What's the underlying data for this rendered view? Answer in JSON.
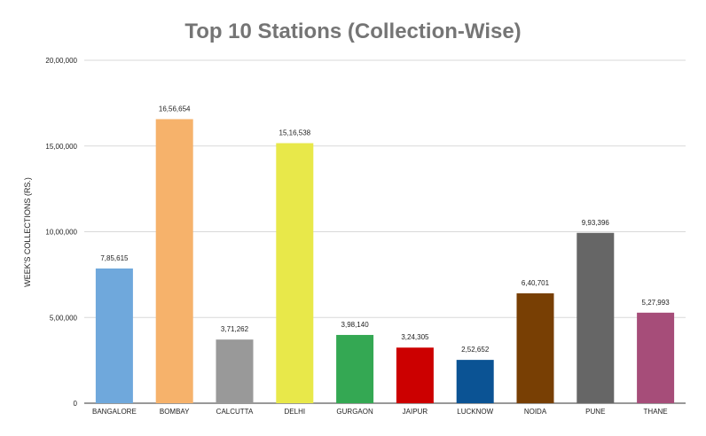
{
  "chart_data": {
    "type": "bar",
    "title": "Top 10 Stations (Collection-Wise)",
    "xlabel": "",
    "ylabel": "WEEK'S COLLECTIONS (RS.)",
    "categories": [
      "BANGALORE",
      "BOMBAY",
      "CALCUTTA",
      "DELHI",
      "GURGAON",
      "JAIPUR",
      "LUCKNOW",
      "NOIDA",
      "PUNE",
      "THANE"
    ],
    "values": [
      785615,
      1656654,
      371262,
      1516538,
      398140,
      324305,
      252652,
      640701,
      993396,
      527993
    ],
    "value_labels": [
      "7,85,615",
      "16,56,654",
      "3,71,262",
      "15,16,538",
      "3,98,140",
      "3,24,305",
      "2,52,652",
      "6,40,701",
      "9,93,396",
      "5,27,993"
    ],
    "colors": [
      "#6fa8dc",
      "#f6b26b",
      "#999999",
      "#e8e84a",
      "#34a853",
      "#cc0000",
      "#0b5394",
      "#783f04",
      "#666666",
      "#a64d79"
    ],
    "ylim": [
      0,
      2000000
    ],
    "yticks": [
      0,
      500000,
      1000000,
      1500000,
      2000000
    ],
    "ytick_labels": [
      "0",
      "5,00,000",
      "10,00,000",
      "15,00,000",
      "20,00,000"
    ],
    "grid": true,
    "legend": "none"
  }
}
